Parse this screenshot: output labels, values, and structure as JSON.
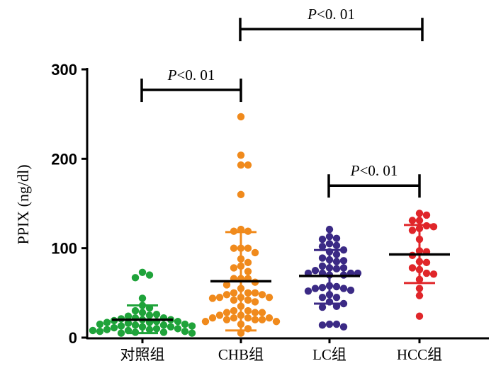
{
  "chart_data": {
    "type": "scatter",
    "subtype": "dot-plot with mean and SD",
    "ylabel": "PPIX (ng/dl)",
    "xlabel": "",
    "ylim": [
      0,
      300
    ],
    "yticks": [
      0,
      100,
      200,
      300
    ],
    "ytick_labels": [
      "0",
      "100",
      "200",
      "300"
    ],
    "categories": [
      "对照组",
      "CHB组",
      "LC组",
      "HCC组"
    ],
    "series": [
      {
        "name": "对照组",
        "color": "#1fa33a",
        "mean": 20,
        "sd_upper": 36,
        "sd_lower": 5,
        "values": [
          73,
          70,
          67,
          44,
          36,
          33,
          30,
          28,
          26,
          25,
          24,
          22,
          22,
          21,
          20,
          20,
          19,
          18,
          18,
          17,
          17,
          16,
          15,
          15,
          14,
          14,
          13,
          13,
          12,
          12,
          11,
          10,
          10,
          9,
          9,
          8,
          8,
          7,
          7,
          6,
          6,
          5,
          5
        ]
      },
      {
        "name": "CHB组",
        "color": "#f08a1c",
        "mean": 63,
        "sd_upper": 118,
        "sd_lower": 8,
        "values": [
          247,
          204,
          193,
          193,
          160,
          121,
          119,
          119,
          100,
          100,
          100,
          95,
          88,
          84,
          80,
          78,
          74,
          66,
          66,
          66,
          62,
          59,
          55,
          50,
          50,
          50,
          48,
          48,
          45,
          45,
          45,
          44,
          42,
          42,
          40,
          35,
          30,
          30,
          28,
          28,
          28,
          25,
          25,
          22,
          22,
          22,
          22,
          20,
          20,
          20,
          18,
          18,
          15,
          10,
          5
        ]
      },
      {
        "name": "LC组",
        "color": "#3b2a85",
        "mean": 69,
        "sd_upper": 98,
        "sd_lower": 38,
        "values": [
          121,
          113,
          111,
          110,
          105,
          103,
          102,
          98,
          96,
          93,
          89,
          87,
          86,
          85,
          80,
          78,
          78,
          77,
          75,
          72,
          72,
          72,
          72,
          70,
          70,
          58,
          57,
          56,
          55,
          55,
          53,
          52,
          48,
          45,
          45,
          40,
          38,
          35,
          34,
          15,
          15,
          14,
          12
        ]
      },
      {
        "name": "HCC组",
        "color": "#e0262a",
        "mean": 93,
        "sd_upper": 126,
        "sd_lower": 61,
        "values": [
          139,
          137,
          131,
          131,
          125,
          124,
          122,
          120,
          110,
          97,
          96,
          92,
          85,
          84,
          78,
          76,
          72,
          71,
          65,
          55,
          47,
          24
        ]
      }
    ],
    "annotations": [
      {
        "label_prefix": "P",
        "label_rest": "<0. 01",
        "from": "CHB组",
        "to": "HCC组",
        "level": 345
      },
      {
        "label_prefix": "P",
        "label_rest": "<0. 01",
        "from": "对照组",
        "to": "CHB组",
        "level": 277
      },
      {
        "label_prefix": "P",
        "label_rest": "<0. 01",
        "from": "LC组",
        "to": "HCC组",
        "level": 170
      }
    ],
    "grid": false,
    "legend": "none"
  }
}
